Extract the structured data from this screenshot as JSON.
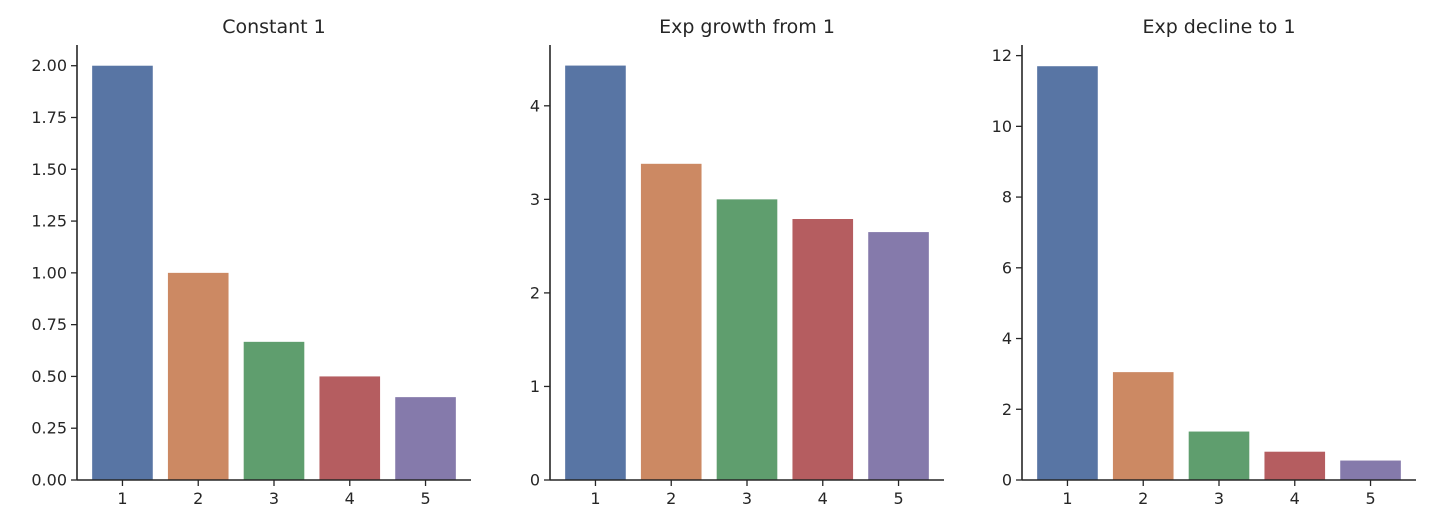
{
  "chart_data": [
    {
      "type": "bar",
      "title": "Constant 1",
      "xlabel": "",
      "ylabel": "",
      "categories": [
        "1",
        "2",
        "3",
        "4",
        "5"
      ],
      "values": [
        2.0,
        1.0,
        0.667,
        0.5,
        0.4
      ],
      "ylim": [
        0,
        2.1
      ],
      "yticks": [
        0,
        0.25,
        0.5,
        0.75,
        1.0,
        1.25,
        1.5,
        1.75,
        2.0
      ],
      "ytick_labels": [
        "0.00",
        "0.25",
        "0.50",
        "0.75",
        "1.00",
        "1.25",
        "1.50",
        "1.75",
        "2.00"
      ],
      "grid": false,
      "legend": "none"
    },
    {
      "type": "bar",
      "title": "Exp growth from 1",
      "xlabel": "",
      "ylabel": "",
      "categories": [
        "1",
        "2",
        "3",
        "4",
        "5"
      ],
      "values": [
        4.43,
        3.38,
        3.0,
        2.79,
        2.65
      ],
      "ylim": [
        0,
        4.65
      ],
      "yticks": [
        0,
        1,
        2,
        3,
        4
      ],
      "ytick_labels": [
        "0",
        "1",
        "2",
        "3",
        "4"
      ],
      "grid": false,
      "legend": "none"
    },
    {
      "type": "bar",
      "title": "Exp decline to 1",
      "xlabel": "",
      "ylabel": "",
      "categories": [
        "1",
        "2",
        "3",
        "4",
        "5"
      ],
      "values": [
        11.7,
        3.05,
        1.37,
        0.8,
        0.55
      ],
      "ylim": [
        0,
        12.3
      ],
      "yticks": [
        0,
        2,
        4,
        6,
        8,
        10,
        12
      ],
      "ytick_labels": [
        "0",
        "2",
        "4",
        "6",
        "8",
        "10",
        "12"
      ],
      "grid": false,
      "legend": "none"
    }
  ],
  "bar_colors": [
    "#5875a4",
    "#cc8963",
    "#5f9e6e",
    "#b55d60",
    "#857aab"
  ]
}
